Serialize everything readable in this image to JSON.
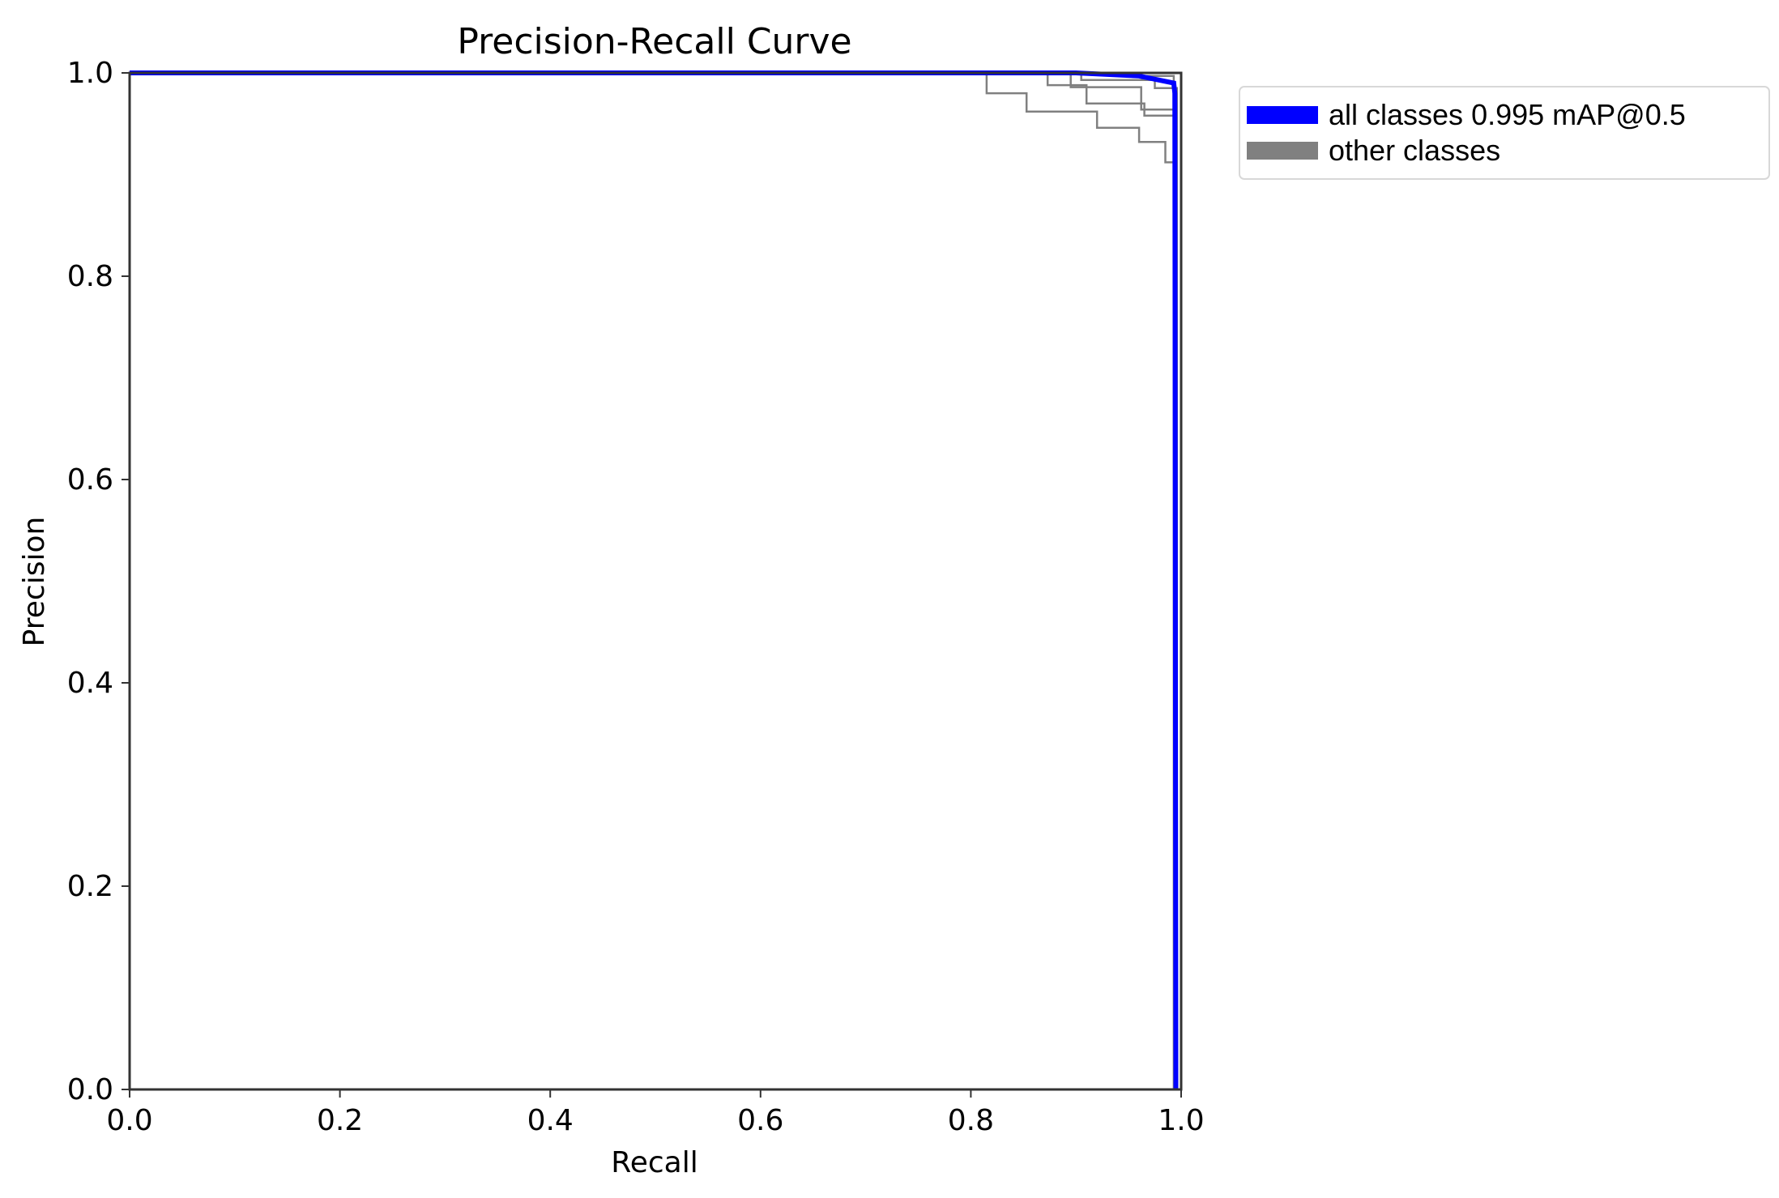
{
  "chart_data": {
    "type": "line",
    "title": "Precision-Recall Curve",
    "xlabel": "Recall",
    "ylabel": "Precision",
    "xlim": [
      0.0,
      1.0
    ],
    "ylim": [
      0.0,
      1.0
    ],
    "x_ticks": [
      "0.0",
      "0.2",
      "0.4",
      "0.6",
      "0.8",
      "1.0"
    ],
    "y_ticks": [
      "0.0",
      "0.2",
      "0.4",
      "0.6",
      "0.8",
      "1.0"
    ],
    "grid": false,
    "legend_position": "outside-top-right",
    "legend": [
      {
        "label": "all classes 0.995 mAP@0.5",
        "color": "#0000ff"
      },
      {
        "label": "other classes",
        "color": "#808080"
      }
    ],
    "series": [
      {
        "name": "all classes 0.995 mAP@0.5",
        "color": "#0000ff",
        "points": [
          [
            0.0,
            1.0
          ],
          [
            0.9,
            1.0
          ],
          [
            0.96,
            0.997
          ],
          [
            0.993,
            0.99
          ],
          [
            0.994,
            0.98
          ],
          [
            0.995,
            0.0
          ]
        ]
      },
      {
        "color": "#808080",
        "points": [
          [
            0.0,
            1.0
          ],
          [
            0.815,
            1.0
          ],
          [
            0.815,
            0.98
          ],
          [
            0.853,
            0.98
          ],
          [
            0.853,
            0.962
          ],
          [
            0.92,
            0.962
          ],
          [
            0.92,
            0.946
          ],
          [
            0.96,
            0.946
          ],
          [
            0.96,
            0.932
          ],
          [
            0.985,
            0.932
          ],
          [
            0.985,
            0.912
          ],
          [
            0.995,
            0.912
          ],
          [
            0.995,
            0.0
          ]
        ]
      },
      {
        "color": "#808080",
        "points": [
          [
            0.0,
            1.0
          ],
          [
            0.873,
            1.0
          ],
          [
            0.873,
            0.988
          ],
          [
            0.91,
            0.988
          ],
          [
            0.91,
            0.97
          ],
          [
            0.965,
            0.97
          ],
          [
            0.965,
            0.958
          ],
          [
            0.995,
            0.958
          ],
          [
            0.995,
            0.0
          ]
        ]
      },
      {
        "color": "#808080",
        "points": [
          [
            0.0,
            1.0
          ],
          [
            0.895,
            1.0
          ],
          [
            0.895,
            0.986
          ],
          [
            0.962,
            0.986
          ],
          [
            0.962,
            0.964
          ],
          [
            0.994,
            0.964
          ],
          [
            0.994,
            0.0
          ]
        ]
      },
      {
        "color": "#808080",
        "points": [
          [
            0.0,
            1.0
          ],
          [
            0.905,
            1.0
          ],
          [
            0.905,
            0.993
          ],
          [
            0.975,
            0.993
          ],
          [
            0.975,
            0.985
          ],
          [
            0.996,
            0.985
          ],
          [
            0.996,
            0.0
          ]
        ]
      },
      {
        "color": "#808080",
        "points": [
          [
            0.0,
            1.0
          ],
          [
            0.95,
            1.0
          ],
          [
            0.95,
            0.997
          ],
          [
            0.993,
            0.997
          ],
          [
            0.993,
            0.0
          ]
        ]
      }
    ]
  }
}
